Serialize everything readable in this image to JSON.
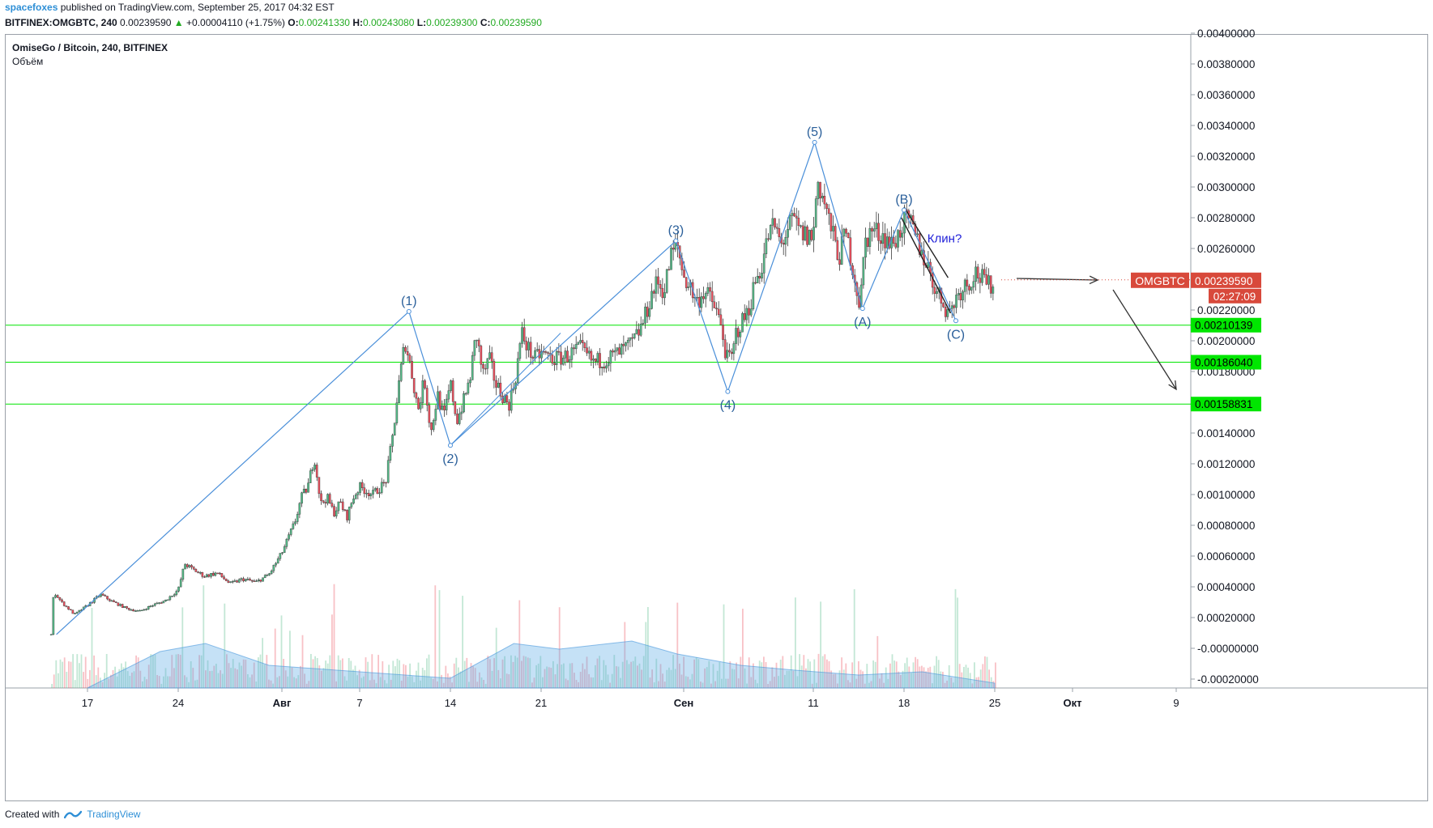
{
  "header": {
    "user": "spacefoxes",
    "published": "published on TradingView.com, September 25, 2017 04:32 EST",
    "symbol_line": "BITFINEX:OMGBTC, 240",
    "last": "0.00239590",
    "change_arrow": "▲",
    "change": "+0.00004110 (+1.75%)",
    "o_label": "O:",
    "o_val": "0.00241330",
    "h_label": "H:",
    "h_val": "0.00243080",
    "l_label": "L:",
    "l_val": "0.00239300",
    "c_label": "C:",
    "c_val": "0.00239590"
  },
  "pane": {
    "title": "OmiseGo / Bitcoin, 240, BITFINEX",
    "volume_title": "Объём"
  },
  "footer": {
    "created_with": "Created with",
    "brand": "TradingView"
  },
  "chart_data": {
    "type": "candlestick",
    "symbol": "OMGBTC",
    "exchange": "BITFINEX",
    "interval": "240",
    "last_price": 0.0023959,
    "last_price_label": "0.00239590",
    "countdown": "02:27:09",
    "y_ticks": [
      "0.00400000",
      "0.00380000",
      "0.00360000",
      "0.00340000",
      "0.00320000",
      "0.00300000",
      "0.00280000",
      "0.00260000",
      "0.00220000",
      "0.00200000",
      "0.00180000",
      "0.00140000",
      "0.00120000",
      "0.00100000",
      "0.00080000",
      "0.00060000",
      "0.00040000",
      "0.00020000",
      "-0.00000000",
      "-0.00020000"
    ],
    "y_tick_values": [
      0.004,
      0.0038,
      0.0036,
      0.0034,
      0.0032,
      0.003,
      0.0028,
      0.0026,
      0.0022,
      0.002,
      0.0018,
      0.0014,
      0.0012,
      0.001,
      0.0008,
      0.0006,
      0.0004,
      0.0002,
      0,
      -0.0002
    ],
    "ylim": [
      -0.0002,
      0.004
    ],
    "x_ticks": [
      {
        "label": "17",
        "day": 17
      },
      {
        "label": "24",
        "day": 24
      },
      {
        "label": "Авг",
        "day": 32
      },
      {
        "label": "7",
        "day": 38
      },
      {
        "label": "14",
        "day": 45
      },
      {
        "label": "21",
        "day": 52
      },
      {
        "label": "Сен",
        "day": 63
      },
      {
        "label": "11",
        "day": 73
      },
      {
        "label": "18",
        "day": 80
      },
      {
        "label": "25",
        "day": 87
      },
      {
        "label": "Окт",
        "day": 93
      },
      {
        "label": "9",
        "day": 101
      }
    ],
    "horizontal_levels": [
      {
        "value": 0.00210139,
        "label": "0.00210139",
        "color": "#00e600"
      },
      {
        "value": 0.0018604,
        "label": "0.00186040",
        "color": "#00e600"
      },
      {
        "value": 0.00158831,
        "label": "0.00158831",
        "color": "#00e600"
      }
    ],
    "price_path": [
      [
        14.2,
        9e-05
      ],
      [
        14.4,
        0.00037
      ],
      [
        15,
        0.0003
      ],
      [
        16,
        0.00022
      ],
      [
        17,
        0.00028
      ],
      [
        18,
        0.00035
      ],
      [
        19,
        0.0003
      ],
      [
        20,
        0.00026
      ],
      [
        21,
        0.00024
      ],
      [
        22,
        0.00028
      ],
      [
        23,
        0.00031
      ],
      [
        24,
        0.00038
      ],
      [
        24.5,
        0.00055
      ],
      [
        25,
        0.00052
      ],
      [
        26,
        0.00047
      ],
      [
        27,
        0.00049
      ],
      [
        28,
        0.00042
      ],
      [
        29,
        0.00045
      ],
      [
        30,
        0.00043
      ],
      [
        31,
        0.00048
      ],
      [
        32,
        0.00062
      ],
      [
        33,
        0.00082
      ],
      [
        33.5,
        0.00098
      ],
      [
        34,
        0.00105
      ],
      [
        34.5,
        0.00125
      ],
      [
        35,
        0.00094
      ],
      [
        35.5,
        0.00098
      ],
      [
        36,
        0.00088
      ],
      [
        36.5,
        0.00095
      ],
      [
        37,
        0.00085
      ],
      [
        37.5,
        0.00098
      ],
      [
        38,
        0.00105
      ],
      [
        39,
        0.001
      ],
      [
        40,
        0.00108
      ],
      [
        40.5,
        0.00135
      ],
      [
        41,
        0.0017
      ],
      [
        41.5,
        0.002
      ],
      [
        42,
        0.0018
      ],
      [
        42.5,
        0.00155
      ],
      [
        43,
        0.00175
      ],
      [
        43.5,
        0.0014
      ],
      [
        44,
        0.00165
      ],
      [
        44.5,
        0.0015
      ],
      [
        45,
        0.00172
      ],
      [
        45.5,
        0.00148
      ],
      [
        46,
        0.0016
      ],
      [
        46.5,
        0.00175
      ],
      [
        47,
        0.00205
      ],
      [
        47.5,
        0.00178
      ],
      [
        48,
        0.00188
      ],
      [
        48.5,
        0.00172
      ],
      [
        49,
        0.00165
      ],
      [
        49.5,
        0.00158
      ],
      [
        50,
        0.00175
      ],
      [
        50.5,
        0.00205
      ],
      [
        51,
        0.00195
      ],
      [
        51.5,
        0.00188
      ],
      [
        52,
        0.00192
      ],
      [
        53,
        0.00188
      ],
      [
        54,
        0.0019
      ],
      [
        55,
        0.00195
      ],
      [
        56,
        0.00186
      ],
      [
        57,
        0.00188
      ],
      [
        58,
        0.00192
      ],
      [
        59,
        0.00198
      ],
      [
        59.5,
        0.00205
      ],
      [
        60,
        0.00215
      ],
      [
        60.5,
        0.0023
      ],
      [
        61,
        0.00238
      ],
      [
        61.5,
        0.00232
      ],
      [
        62,
        0.00255
      ],
      [
        62.5,
        0.00262
      ],
      [
        63,
        0.00242
      ],
      [
        63.5,
        0.00235
      ],
      [
        64,
        0.00225
      ],
      [
        64.5,
        0.00232
      ],
      [
        65,
        0.00228
      ],
      [
        65.5,
        0.0022
      ],
      [
        66,
        0.00205
      ],
      [
        66.3,
        0.00188
      ],
      [
        66.8,
        0.0019
      ],
      [
        67,
        0.00205
      ],
      [
        67.5,
        0.00212
      ],
      [
        68,
        0.0022
      ],
      [
        68.5,
        0.00238
      ],
      [
        69,
        0.00248
      ],
      [
        69.5,
        0.00268
      ],
      [
        70,
        0.00275
      ],
      [
        70.5,
        0.00262
      ],
      [
        71,
        0.00272
      ],
      [
        71.5,
        0.00278
      ],
      [
        72,
        0.0027
      ],
      [
        72.5,
        0.00268
      ],
      [
        73,
        0.00268
      ],
      [
        73.3,
        0.00305
      ],
      [
        73.8,
        0.00292
      ],
      [
        74,
        0.00285
      ],
      [
        74.5,
        0.00268
      ],
      [
        75,
        0.00255
      ],
      [
        75.5,
        0.0027
      ],
      [
        76,
        0.0025
      ],
      [
        76.6,
        0.00222
      ],
      [
        77,
        0.00265
      ],
      [
        77.5,
        0.00272
      ],
      [
        78,
        0.0027
      ],
      [
        78.5,
        0.00268
      ],
      [
        79,
        0.00262
      ],
      [
        79.5,
        0.00268
      ],
      [
        80,
        0.00278
      ],
      [
        80.5,
        0.00275
      ],
      [
        81,
        0.00265
      ],
      [
        81.5,
        0.00255
      ],
      [
        82,
        0.00245
      ],
      [
        82.5,
        0.00232
      ],
      [
        83,
        0.00225
      ],
      [
        83.5,
        0.00218
      ],
      [
        84,
        0.00228
      ],
      [
        84.5,
        0.00235
      ],
      [
        85,
        0.00238
      ],
      [
        85.5,
        0.00245
      ],
      [
        86,
        0.0024
      ],
      [
        86.5,
        0.00235
      ],
      [
        87,
        0.0024
      ]
    ],
    "wave_labels": [
      {
        "text": "(1)",
        "day": 41.8,
        "price": 0.00219
      },
      {
        "text": "(2)",
        "day": 45,
        "price": 0.00132
      },
      {
        "text": "(3)",
        "day": 62.4,
        "price": 0.00265
      },
      {
        "text": "(4)",
        "day": 66.4,
        "price": 0.00167
      },
      {
        "text": "(5)",
        "day": 73.1,
        "price": 0.00329
      },
      {
        "text": "(A)",
        "day": 76.8,
        "price": 0.00221
      },
      {
        "text": "(B)",
        "day": 80.0,
        "price": 0.00285
      },
      {
        "text": "(C)",
        "day": 84.0,
        "price": 0.00213
      }
    ],
    "annotation": "Клин?",
    "volume_area_note": "volume moving average shown as shaded area",
    "colors": {
      "up": "#53b987",
      "down": "#eb4d5c",
      "wave": "#4a8fd9",
      "level": "#00e600",
      "price_tag": "#d8493b",
      "annotation": "#1e1ed8"
    }
  }
}
